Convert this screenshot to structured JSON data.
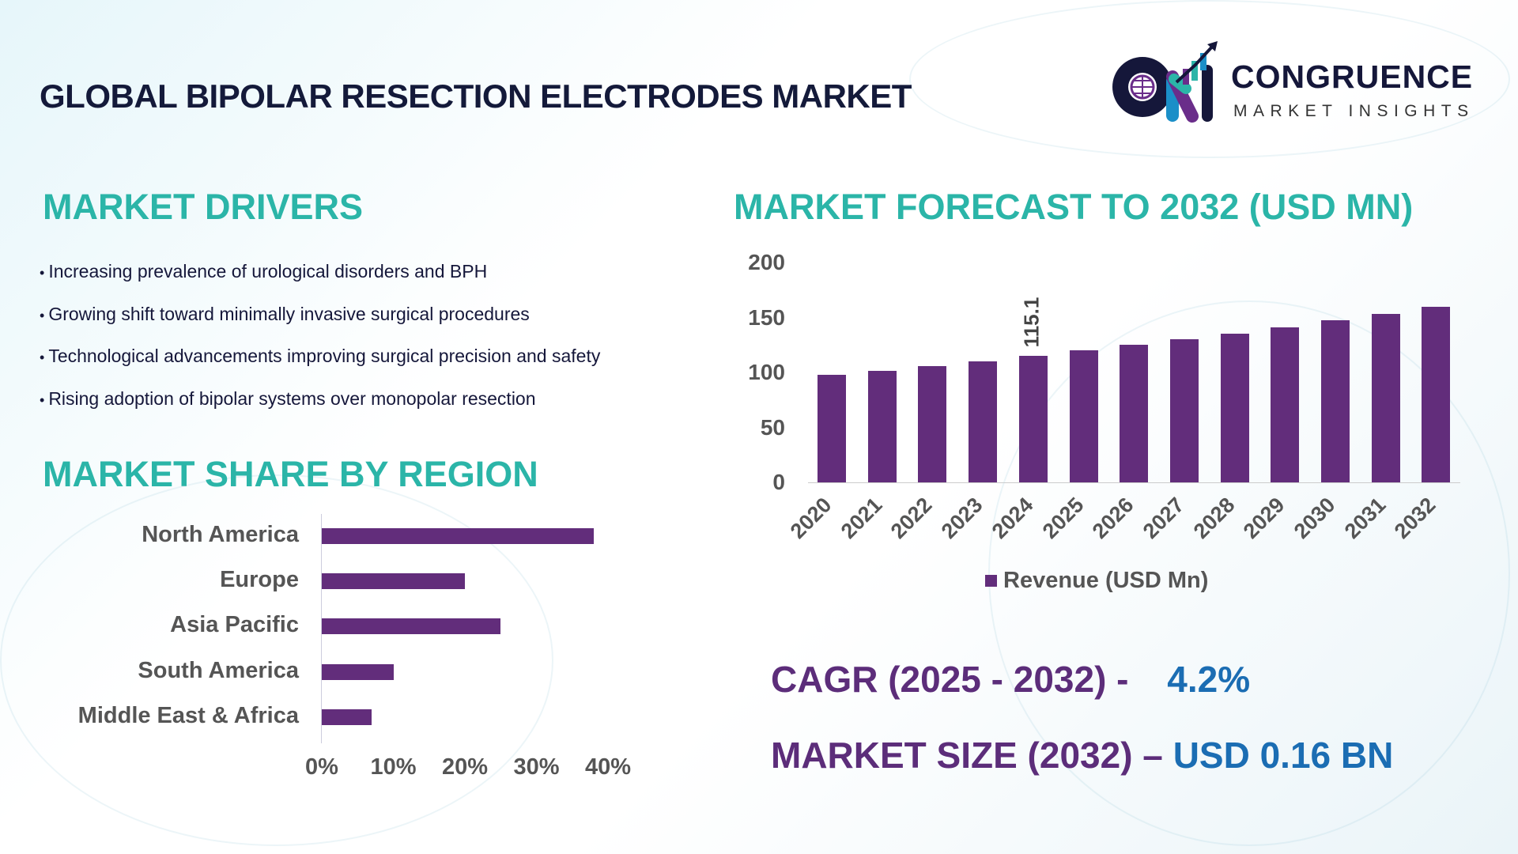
{
  "title": "GLOBAL BIPOLAR RESECTION ELECTRODES MARKET",
  "logo": {
    "name": "CONGRUENCE",
    "sub": "MARKET INSIGHTS"
  },
  "drivers": {
    "heading": "MARKET DRIVERS",
    "items": [
      "Increasing prevalence of urological disorders and BPH",
      "Growing shift toward minimally invasive surgical procedures",
      "Technological advancements improving surgical precision and safety",
      "Rising adoption of bipolar systems over monopolar resection"
    ]
  },
  "colors": {
    "teal": "#2bb5a8",
    "bar": "#622d7b",
    "purple": "#5c2d7a",
    "blue": "#1b6db3"
  },
  "chart_data": [
    {
      "type": "bar",
      "orientation": "horizontal",
      "title": "MARKET SHARE BY REGION",
      "categories": [
        "North America",
        "Europe",
        "Asia Pacific",
        "South America",
        "Middle East & Africa"
      ],
      "values": [
        38,
        20,
        25,
        10,
        7
      ],
      "unit": "%",
      "xlim": [
        0,
        40
      ],
      "xticks": [
        "0%",
        "10%",
        "20%",
        "30%",
        "40%"
      ]
    },
    {
      "type": "bar",
      "title": "MARKET FORECAST TO 2032 (USD MN)",
      "categories": [
        "2020",
        "2021",
        "2022",
        "2023",
        "2024",
        "2025",
        "2026",
        "2027",
        "2028",
        "2029",
        "2030",
        "2031",
        "2032"
      ],
      "series": [
        {
          "name": "Revenue (USD Mn)",
          "values": [
            97.6,
            101.7,
            106.0,
            110.4,
            115.1,
            119.9,
            124.9,
            130.2,
            135.6,
            141.3,
            147.3,
            153.4,
            159.9
          ]
        }
      ],
      "data_labels": {
        "2024": "115.1"
      },
      "ylim": [
        0,
        200
      ],
      "yticks": [
        "0",
        "50",
        "100",
        "150",
        "200"
      ],
      "legend": "bottom"
    }
  ],
  "stats": {
    "cagr_label": "CAGR (2025 - 2032) -",
    "cagr_value": "4.2%",
    "size_label": "MARKET SIZE (2032) –",
    "size_value": "USD 0.16 BN"
  }
}
